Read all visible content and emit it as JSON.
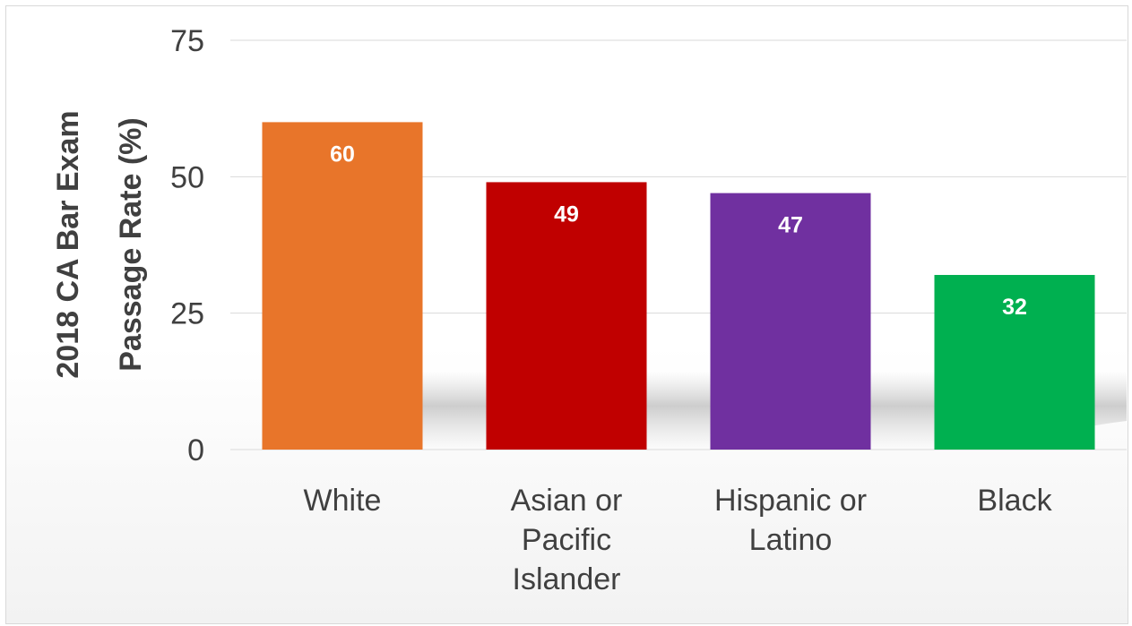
{
  "chart_data": {
    "type": "bar",
    "title": "",
    "xlabel": "",
    "ylabel": "2018 CA Bar Exam Passage Rate (%)",
    "ylabel_lines": [
      "2018 CA Bar Exam",
      "Passage Rate (%)"
    ],
    "categories": [
      "White",
      "Asian or Pacific Islander",
      "Hispanic or Latino",
      "Black"
    ],
    "category_lines": [
      [
        "White"
      ],
      [
        "Asian or",
        "Pacific",
        "Islander"
      ],
      [
        "Hispanic or",
        "Latino"
      ],
      [
        "Black"
      ]
    ],
    "values": [
      60,
      49,
      47,
      32
    ],
    "data_labels": [
      "60",
      "49",
      "47",
      "32"
    ],
    "colors": [
      "#e8752a",
      "#c00000",
      "#7030a0",
      "#00b050"
    ],
    "ylim": [
      0,
      75
    ],
    "yticks": [
      0,
      25,
      50,
      75
    ],
    "ytick_labels": [
      "0",
      "25",
      "50",
      "75"
    ],
    "grid": true,
    "legend": "none"
  }
}
